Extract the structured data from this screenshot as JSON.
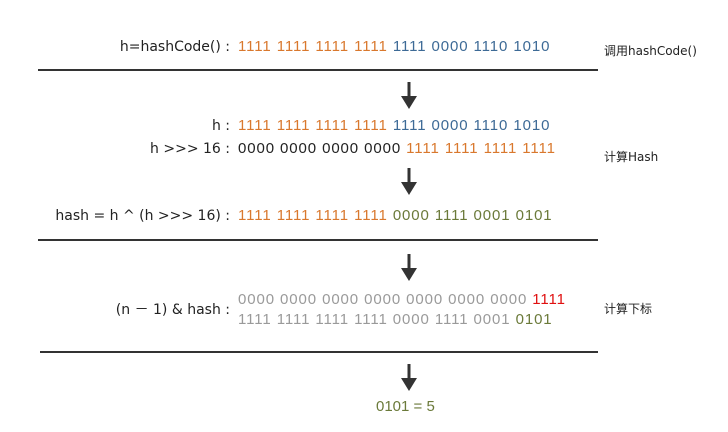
{
  "sections": [
    {
      "rows": [
        {
          "label": "h=hashCode() :",
          "parts": [
            {
              "text": "1111 1111 1111 1111",
              "color": "#d9782d"
            },
            {
              "text": "1111 0000 1110 1010",
              "color": "#3d6a96"
            }
          ]
        }
      ],
      "note": "调用hashCode()"
    },
    {
      "rows": [
        {
          "label": "h :",
          "parts": [
            {
              "text": "1111 1111 1111 1111",
              "color": "#d9782d"
            },
            {
              "text": "1111 0000 1110 1010",
              "color": "#3d6a96"
            }
          ]
        },
        {
          "label": "h >>> 16 :",
          "parts": [
            {
              "text": "0000 0000 0000 0000",
              "color": "#222222"
            },
            {
              "text": "1111 1111 1111 1111",
              "color": "#d9782d"
            }
          ]
        },
        {
          "label": "hash = h ^ (h >>> 16) :",
          "parts": [
            {
              "text": "1111 1111 1111 1111",
              "color": "#d9782d"
            },
            {
              "text": "0000 1111 0001 0101",
              "color": "#6b7a3a"
            }
          ]
        }
      ],
      "note": "计算Hash"
    },
    {
      "rows": [
        {
          "label": "(n － 1) & hash :",
          "parts": [
            {
              "text": "0000 0000 0000 0000 0000 0000 0000",
              "color": "#9a9a9a"
            },
            {
              "text": "1111",
              "color": "#e01010"
            }
          ]
        },
        {
          "parts": [
            {
              "text": "1111 1111 1111 1111 0000 1111 0001",
              "color": "#9a9a9a"
            },
            {
              "text": "0101",
              "color": "#6b7a3a"
            }
          ]
        }
      ],
      "note": "计算下标"
    }
  ],
  "result": "0101 = 5",
  "result_color": "#6b7a3a"
}
